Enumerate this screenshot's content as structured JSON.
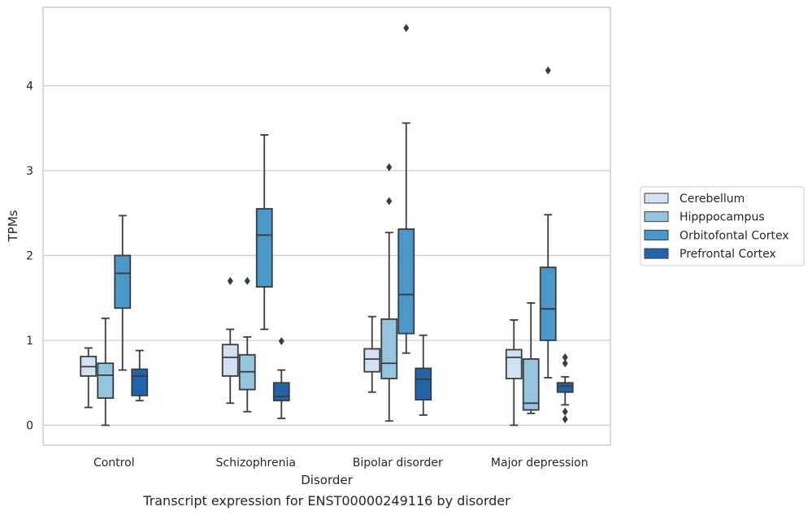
{
  "chart_data": {
    "type": "boxplot",
    "title": "Transcript expression for ENST00000249116 by disorder",
    "xlabel": "Disorder",
    "ylabel": "TPMs",
    "ylim": [
      -0.23,
      4.92
    ],
    "yticks": [
      0,
      1,
      2,
      3,
      4
    ],
    "grid": "horizontal",
    "legend_placement": "right",
    "categories": [
      "Control",
      "Schizophrenia",
      "Bipolar disorder",
      "Major depression"
    ],
    "series": [
      {
        "name": "Cerebellum",
        "color": "#d0e1f2",
        "boxes": [
          {
            "whisker_low": 0.21,
            "q1": 0.58,
            "median": 0.69,
            "q3": 0.81,
            "whisker_high": 0.91,
            "outliers": []
          },
          {
            "whisker_low": 0.26,
            "q1": 0.58,
            "median": 0.8,
            "q3": 0.95,
            "whisker_high": 1.13,
            "outliers": [
              1.7
            ]
          },
          {
            "whisker_low": 0.39,
            "q1": 0.63,
            "median": 0.78,
            "q3": 0.9,
            "whisker_high": 1.28,
            "outliers": []
          },
          {
            "whisker_low": 0.0,
            "q1": 0.55,
            "median": 0.8,
            "q3": 0.89,
            "whisker_high": 1.24,
            "outliers": []
          }
        ]
      },
      {
        "name": "Hipppocampus",
        "color": "#94c4df",
        "boxes": [
          {
            "whisker_low": 0.0,
            "q1": 0.32,
            "median": 0.59,
            "q3": 0.73,
            "whisker_high": 1.26,
            "outliers": []
          },
          {
            "whisker_low": 0.16,
            "q1": 0.42,
            "median": 0.63,
            "q3": 0.83,
            "whisker_high": 1.04,
            "outliers": [
              1.7
            ]
          },
          {
            "whisker_low": 0.05,
            "q1": 0.55,
            "median": 0.73,
            "q3": 1.25,
            "whisker_high": 2.27,
            "outliers": [
              2.64,
              3.04
            ]
          },
          {
            "whisker_low": 0.14,
            "q1": 0.18,
            "median": 0.26,
            "q3": 0.78,
            "whisker_high": 1.44,
            "outliers": []
          }
        ]
      },
      {
        "name": "Orbitofontal Cortex",
        "color": "#4a98c9",
        "boxes": [
          {
            "whisker_low": 0.65,
            "q1": 1.38,
            "median": 1.79,
            "q3": 2.0,
            "whisker_high": 2.47,
            "outliers": []
          },
          {
            "whisker_low": 1.13,
            "q1": 1.63,
            "median": 2.24,
            "q3": 2.55,
            "whisker_high": 3.42,
            "outliers": []
          },
          {
            "whisker_low": 0.85,
            "q1": 1.08,
            "median": 1.54,
            "q3": 2.31,
            "whisker_high": 3.56,
            "outliers": [
              4.68
            ]
          },
          {
            "whisker_low": 0.56,
            "q1": 1.0,
            "median": 1.37,
            "q3": 1.86,
            "whisker_high": 2.48,
            "outliers": [
              4.18
            ]
          }
        ]
      },
      {
        "name": "Prefrontal Cortex",
        "color": "#2264aa",
        "boxes": [
          {
            "whisker_low": 0.29,
            "q1": 0.35,
            "median": 0.58,
            "q3": 0.66,
            "whisker_high": 0.88,
            "outliers": []
          },
          {
            "whisker_low": 0.08,
            "q1": 0.29,
            "median": 0.34,
            "q3": 0.5,
            "whisker_high": 0.65,
            "outliers": [
              0.99
            ]
          },
          {
            "whisker_low": 0.12,
            "q1": 0.3,
            "median": 0.54,
            "q3": 0.67,
            "whisker_high": 1.06,
            "outliers": []
          },
          {
            "whisker_low": 0.24,
            "q1": 0.39,
            "median": 0.46,
            "q3": 0.5,
            "whisker_high": 0.57,
            "outliers": [
              0.07,
              0.16,
              0.73,
              0.8
            ]
          }
        ]
      }
    ]
  }
}
